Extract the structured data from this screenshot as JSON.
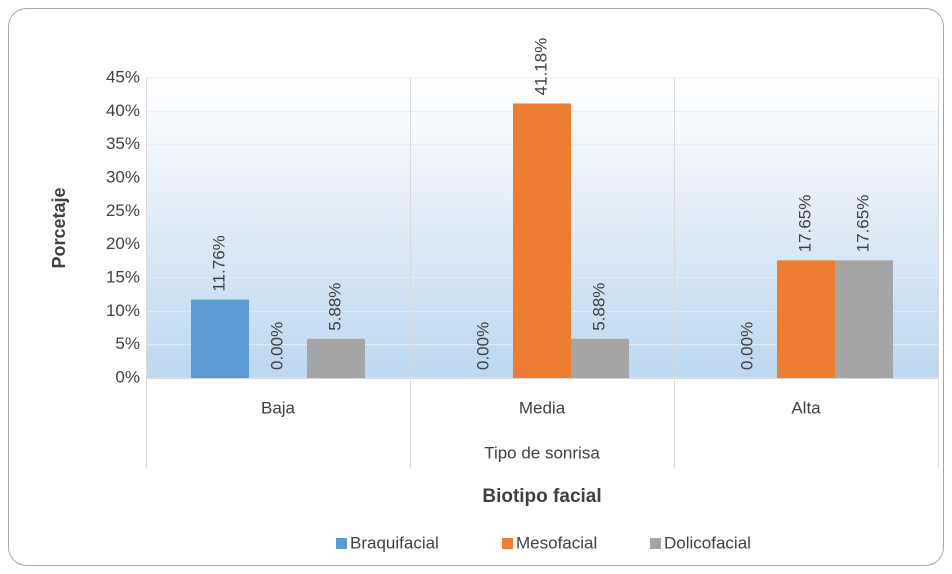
{
  "chart_data": {
    "type": "bar",
    "categories": [
      "Baja",
      "Media",
      "Alta"
    ],
    "series": [
      {
        "name": "Braquifacial",
        "color": "#5b9bd5",
        "values": [
          11.76,
          0,
          0
        ],
        "value_labels": [
          "11.76%",
          "0.00%",
          "0.00%"
        ]
      },
      {
        "name": "Mesofacial",
        "color": "#ed7d31",
        "values": [
          0,
          41.18,
          17.65
        ],
        "value_labels": [
          "0.00%",
          "41.18%",
          "17.65%"
        ]
      },
      {
        "name": "Dolicofacial",
        "color": "#a5a5a5",
        "values": [
          5.88,
          5.88,
          17.65
        ],
        "value_labels": [
          "5.88%",
          "5.88%",
          "17.65%"
        ]
      }
    ],
    "x_label": "Tipo de sonrisa",
    "y_label": "Porcetaje",
    "legend_title": "Biotipo facial",
    "legend": "bottom",
    "ylim": [
      0,
      45
    ],
    "yticks": [
      {
        "value": 0,
        "label": "0%"
      },
      {
        "value": 5,
        "label": "5%"
      },
      {
        "value": 10,
        "label": "10%"
      },
      {
        "value": 15,
        "label": "15%"
      },
      {
        "value": 20,
        "label": "20%"
      },
      {
        "value": 25,
        "label": "25%"
      },
      {
        "value": 30,
        "label": "30%"
      },
      {
        "value": 35,
        "label": "35%"
      },
      {
        "value": 40,
        "label": "40%"
      },
      {
        "value": 45,
        "label": "45%"
      }
    ],
    "grid": true
  }
}
